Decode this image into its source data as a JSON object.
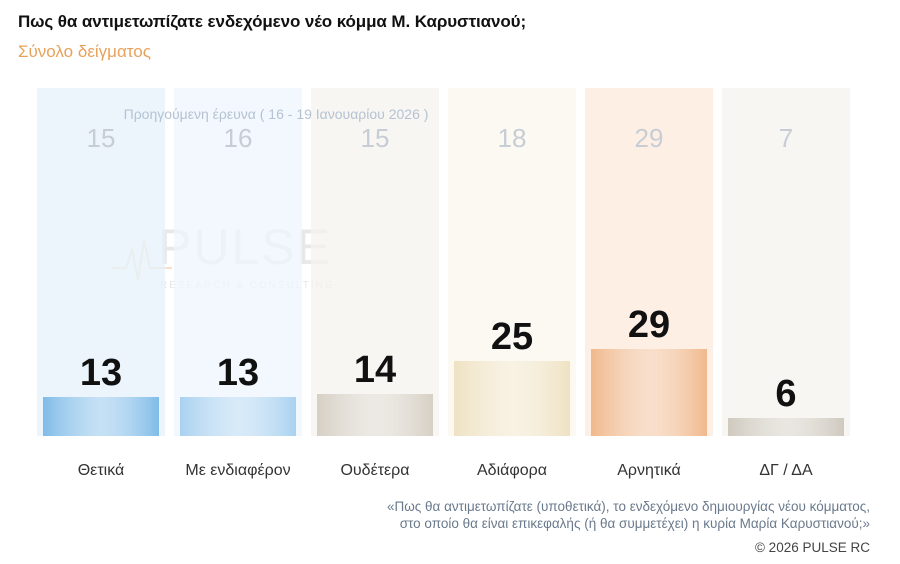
{
  "title": "Πως θα αντιμετωπίζατε ενδεχόμενο νέο κόμμα Μ. Καρυστιανού;",
  "subtitle": "Σύνολο δείγματος",
  "watermark": {
    "word": "PULSE",
    "sub": "RESEARCH & CONSULTING"
  },
  "footnote_lines": [
    "«Πως θα αντιμετωπίζατε (υποθετικά), το ενδεχόμενο δημιουργίας νέου κόμματος,",
    "στο οποίο θα είναι επικεφαλής (ή θα συμμετέχει) η κυρία Μαρία Καρυστιανού;»"
  ],
  "copyright": "©  2026  PULSE RC",
  "chart_data": {
    "type": "bar",
    "categories": [
      "Θετικά",
      "Με ενδιαφέρον",
      "Ουδέτερα",
      "Αδιάφορα",
      "Αρνητικά",
      "ΔΓ / ΔΑ"
    ],
    "series": [
      {
        "name": "",
        "values": [
          13,
          13,
          14,
          25,
          29,
          6
        ]
      }
    ],
    "previous": {
      "label": "Προηγούμενη έρευνα ( 16 - 19 Ιανουαρίου 2026 )",
      "values": [
        15,
        16,
        15,
        18,
        29,
        7
      ]
    },
    "ylim": [
      0,
      40
    ],
    "colors": [
      "#7fbbe8",
      "#a9d1f0",
      "#d6cfc4",
      "#efe2c2",
      "#f0b88c",
      "#cfc9be"
    ],
    "ghost_colors": [
      "#e6f1fb",
      "#eef5fc",
      "#f5f3ef",
      "#fbf7ef",
      "#fde9dc",
      "#f6f3ee"
    ]
  }
}
